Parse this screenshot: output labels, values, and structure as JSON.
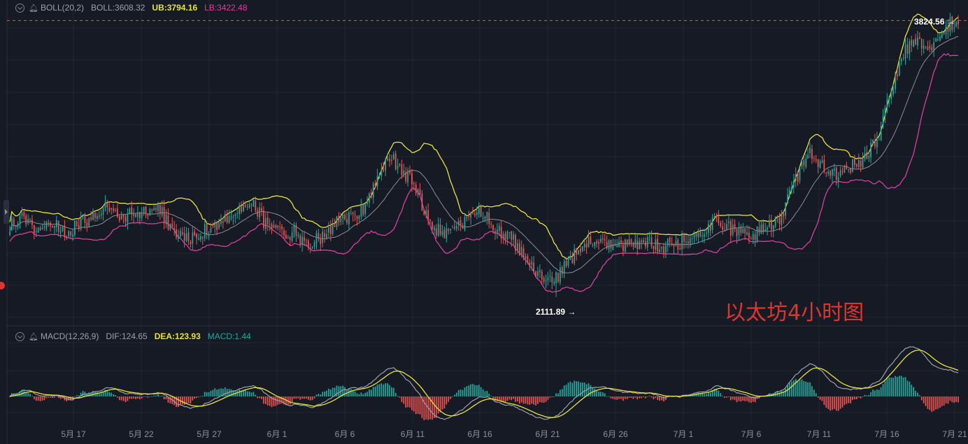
{
  "boll": {
    "name": "BOLL(20,2)",
    "basis_label": "BOLL:3608.32",
    "ub_label": "UB:3794.16",
    "lb_label": "LB:3422.48"
  },
  "macd": {
    "name": "MACD(12,26,9)",
    "dif_label": "DIF:124.65",
    "dea_label": "DEA:123.93",
    "macd_label": "MACD:1.44"
  },
  "watermark": "以太坊4小时图",
  "colors": {
    "background": "#161a25",
    "up": "#26a69a",
    "down": "#ef5350",
    "ub": "#e8e23a",
    "mid": "#8c8c96",
    "lb": "#d6419e",
    "dea": "#e8e23a",
    "dif": "#9aa0ad",
    "annotation": "#ffffff",
    "watermark": "#e0342f"
  },
  "chart_data": {
    "type": "candlestick",
    "timeframe": "4h",
    "x_tick_labels": [
      "5月 17",
      "5月 22",
      "5月 27",
      "6月 1",
      "6月 6",
      "6月 11",
      "6月 16",
      "6月 21",
      "6月 26",
      "7月 1",
      "7月 6",
      "7月 11",
      "7月 16",
      "7月 21"
    ],
    "high_marker": {
      "value": 3824.56,
      "label": "3824.56 →"
    },
    "low_marker": {
      "value": 2111.89,
      "label": "2111.89 →"
    },
    "boll_latest": {
      "mid": 3608.32,
      "ub": 3794.16,
      "lb": 3422.48
    },
    "macd_latest": {
      "dif": 124.65,
      "dea": 123.93,
      "macd": 1.44
    },
    "close_path": [
      [
        0,
        2560
      ],
      [
        10,
        2600
      ],
      [
        20,
        2540
      ],
      [
        30,
        2580
      ],
      [
        40,
        2500
      ],
      [
        50,
        2560
      ],
      [
        60,
        2610
      ],
      [
        70,
        2670
      ],
      [
        80,
        2600
      ],
      [
        90,
        2620
      ],
      [
        100,
        2640
      ],
      [
        110,
        2660
      ],
      [
        120,
        2520
      ],
      [
        130,
        2470
      ],
      [
        140,
        2500
      ],
      [
        150,
        2560
      ],
      [
        160,
        2600
      ],
      [
        170,
        2640
      ],
      [
        180,
        2700
      ],
      [
        190,
        2540
      ],
      [
        200,
        2500
      ],
      [
        210,
        2510
      ],
      [
        220,
        2440
      ],
      [
        230,
        2480
      ],
      [
        240,
        2560
      ],
      [
        250,
        2600
      ],
      [
        260,
        2650
      ],
      [
        270,
        2820
      ],
      [
        280,
        2980
      ],
      [
        290,
        2900
      ],
      [
        300,
        2780
      ],
      [
        310,
        2560
      ],
      [
        320,
        2500
      ],
      [
        330,
        2540
      ],
      [
        340,
        2600
      ],
      [
        350,
        2640
      ],
      [
        360,
        2520
      ],
      [
        370,
        2480
      ],
      [
        380,
        2350
      ],
      [
        390,
        2240
      ],
      [
        400,
        2200
      ],
      [
        410,
        2300
      ],
      [
        420,
        2420
      ],
      [
        430,
        2450
      ],
      [
        440,
        2430
      ],
      [
        450,
        2420
      ],
      [
        460,
        2450
      ],
      [
        470,
        2460
      ],
      [
        480,
        2420
      ],
      [
        490,
        2440
      ],
      [
        500,
        2460
      ],
      [
        510,
        2520
      ],
      [
        520,
        2570
      ],
      [
        530,
        2540
      ],
      [
        540,
        2490
      ],
      [
        550,
        2510
      ],
      [
        560,
        2540
      ],
      [
        570,
        2620
      ],
      [
        580,
        2840
      ],
      [
        590,
        3010
      ],
      [
        600,
        2930
      ],
      [
        610,
        2860
      ],
      [
        620,
        2920
      ],
      [
        630,
        2960
      ],
      [
        640,
        3080
      ],
      [
        650,
        3380
      ],
      [
        660,
        3620
      ],
      [
        670,
        3700
      ],
      [
        680,
        3660
      ],
      [
        690,
        3790
      ],
      [
        700,
        3824
      ]
    ]
  }
}
